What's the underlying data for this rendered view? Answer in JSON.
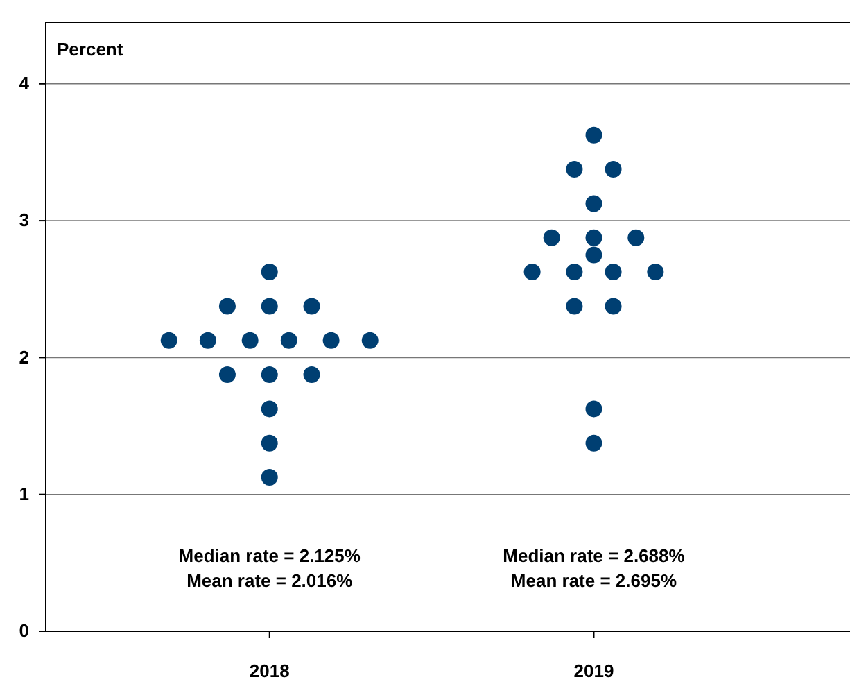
{
  "chart_data": {
    "type": "scatter",
    "ylabel": "Percent",
    "series": [
      {
        "color": "#003f72",
        "x": [
          2018,
          2017.87,
          2018,
          2018.13,
          2017.69,
          2017.81,
          2017.94,
          2018.06,
          2018.19,
          2018.31,
          2017.87,
          2018,
          2018.13,
          2018,
          2018,
          2018,
          2019,
          2018.94,
          2019.06,
          2019,
          2018.87,
          2019,
          2019.13,
          2019,
          2018.81,
          2018.94,
          2019.06,
          2019.19,
          2018.94,
          2019.06,
          2019,
          2019
        ],
        "values": [
          2.625,
          2.375,
          2.375,
          2.375,
          2.125,
          2.125,
          2.125,
          2.125,
          2.125,
          2.125,
          1.875,
          1.875,
          1.875,
          1.625,
          1.375,
          1.125,
          3.625,
          3.375,
          3.375,
          3.125,
          2.875,
          2.875,
          2.875,
          2.75,
          2.625,
          2.625,
          2.625,
          2.625,
          2.375,
          2.375,
          1.625,
          1.375
        ]
      }
    ],
    "xlim": [
      2017.31,
      2019.79
    ],
    "xticks": [
      2018,
      2019
    ],
    "ylim": [
      0,
      4.45
    ],
    "yticks": [
      0,
      1,
      2,
      3,
      4
    ],
    "grid": "y",
    "marker": "circle",
    "annotations": [
      "Median rate = 2.125%",
      "Mean rate = 2.016%",
      "Median rate = 2.688%",
      "Mean rate = 2.695%"
    ]
  }
}
